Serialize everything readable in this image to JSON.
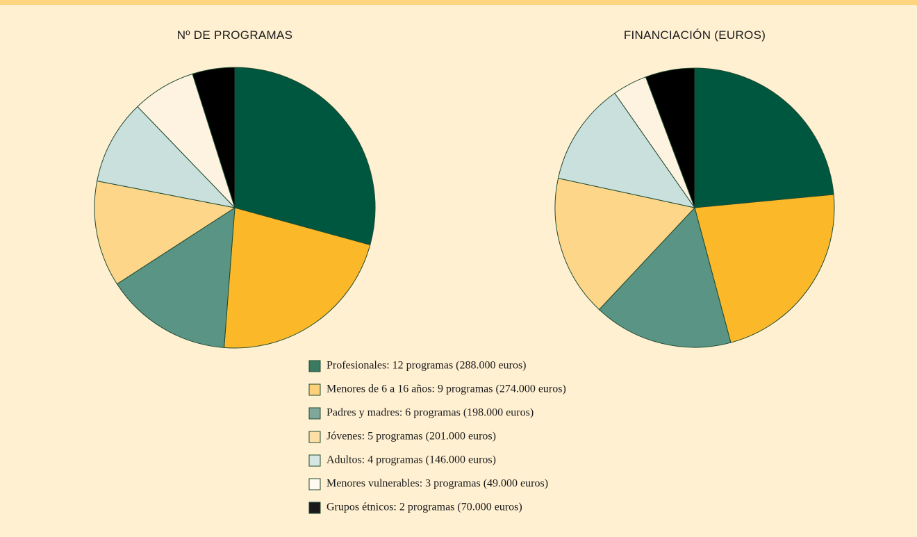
{
  "chart_data": [
    {
      "type": "pie",
      "title": "Nº DE PROGRAMAS",
      "values": [
        12,
        9,
        6,
        5,
        4,
        3,
        2
      ],
      "colors": [
        "#00573f",
        "#fbb829",
        "#5a9485",
        "#fdd68a",
        "#c9e0dc",
        "#fdf3e0",
        "#000000"
      ]
    },
    {
      "type": "pie",
      "title": "FINANCIACIÓN (EUROS)",
      "values": [
        288000,
        274000,
        198000,
        201000,
        146000,
        49000,
        70000
      ],
      "colors": [
        "#00573f",
        "#fbb829",
        "#5a9485",
        "#fdd68a",
        "#c9e0dc",
        "#fdf3e0",
        "#000000"
      ]
    }
  ],
  "legend": {
    "labels": [
      "Profesionales: 12 programas (288.000 euros)",
      "Menores de 6 a 16 años: 9 programas (274.000 euros)",
      "Padres y madres: 6 programas (198.000 euros)",
      "Jóvenes: 5 programas (201.000 euros)",
      "Adultos: 4 programas (146.000 euros)",
      "Menores vulnerables: 3 programas (49.000 euros)",
      "Grupos étnicos: 2 programas (70.000 euros)"
    ],
    "colors": [
      "#3b7a62",
      "#fdd07a",
      "#7fa89b",
      "#fde0a8",
      "#d6e7e3",
      "#fffaf0",
      "#1a1a1a"
    ]
  }
}
